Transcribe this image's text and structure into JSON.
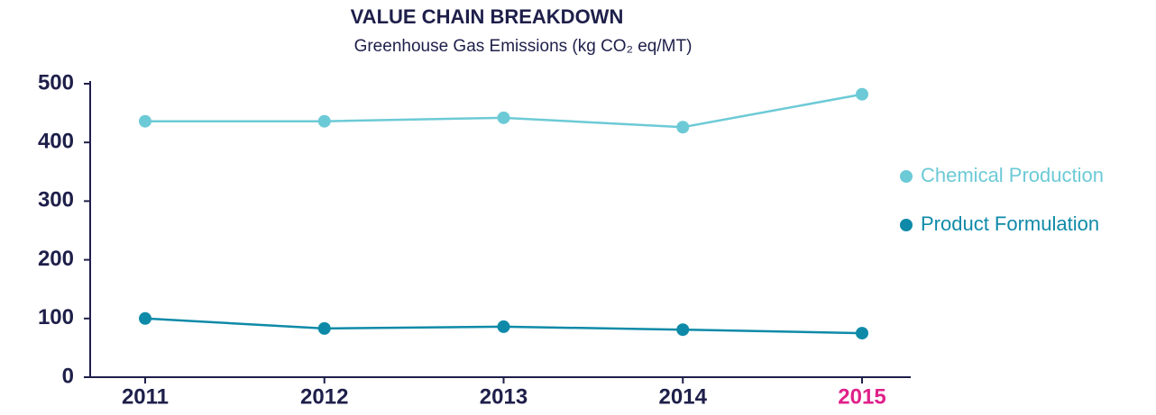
{
  "chart_data": {
    "type": "line",
    "title": "VALUE CHAIN BREAKDOWN",
    "subtitle": "Greenhouse Gas Emissions (kg CO₂ eq/MT)",
    "categories": [
      "2011",
      "2012",
      "2013",
      "2014",
      "2015"
    ],
    "category_colors": [
      "#1e1f4a",
      "#1e1f4a",
      "#1e1f4a",
      "#1e1f4a",
      "#e0218a"
    ],
    "series": [
      {
        "name": "Chemical Production",
        "color": "#6ccad6",
        "values": [
          436,
          436,
          442,
          426,
          482
        ]
      },
      {
        "name": "Product Formulation",
        "color": "#0e8aa8",
        "values": [
          100,
          83,
          86,
          81,
          75
        ]
      }
    ],
    "ylim": [
      0,
      500
    ],
    "yticks": [
      0,
      100,
      200,
      300,
      400,
      500
    ],
    "grid": false,
    "legend": "right"
  }
}
